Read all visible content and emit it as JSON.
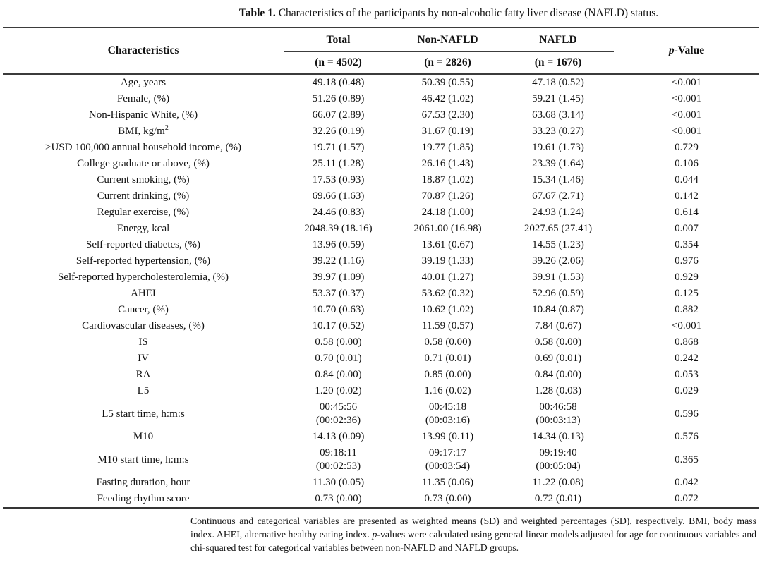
{
  "title": {
    "label": "Table 1.",
    "text": " Characteristics of the participants by non-alcoholic fatty liver disease (NAFLD) status."
  },
  "table": {
    "header": {
      "characteristics": "Characteristics",
      "groups": [
        {
          "name": "Total",
          "n": "(n = 4502)"
        },
        {
          "name": "Non-NAFLD",
          "n": "(n = 2826)"
        },
        {
          "name": "NAFLD",
          "n": "(n = 1676)"
        }
      ],
      "p_italic": "p",
      "p_rest": "-Value"
    },
    "rows": [
      {
        "label": "Age, years",
        "total": "49.18 (0.48)",
        "non_nafld": "50.39 (0.55)",
        "nafld": "47.18 (0.52)",
        "p": "<0.001"
      },
      {
        "label": "Female, (%)",
        "total": "51.26 (0.89)",
        "non_nafld": "46.42 (1.02)",
        "nafld": "59.21 (1.45)",
        "p": "<0.001"
      },
      {
        "label": "Non-Hispanic White, (%)",
        "total": "66.07 (2.89)",
        "non_nafld": "67.53 (2.30)",
        "nafld": "63.68 (3.14)",
        "p": "<0.001"
      },
      {
        "label": "BMI, kg/m",
        "label_sup": "2",
        "total": "32.26 (0.19)",
        "non_nafld": "31.67 (0.19)",
        "nafld": "33.23 (0.27)",
        "p": "<0.001"
      },
      {
        "label": ">USD 100,000 annual household income, (%)",
        "total": "19.71 (1.57)",
        "non_nafld": "19.77 (1.85)",
        "nafld": "19.61 (1.73)",
        "p": "0.729"
      },
      {
        "label": "College graduate or above, (%)",
        "total": "25.11 (1.28)",
        "non_nafld": "26.16 (1.43)",
        "nafld": "23.39 (1.64)",
        "p": "0.106"
      },
      {
        "label": "Current smoking, (%)",
        "total": "17.53 (0.93)",
        "non_nafld": "18.87 (1.02)",
        "nafld": "15.34 (1.46)",
        "p": "0.044"
      },
      {
        "label": "Current drinking, (%)",
        "total": "69.66 (1.63)",
        "non_nafld": "70.87 (1.26)",
        "nafld": "67.67 (2.71)",
        "p": "0.142"
      },
      {
        "label": "Regular exercise, (%)",
        "total": "24.46 (0.83)",
        "non_nafld": "24.18 (1.00)",
        "nafld": "24.93 (1.24)",
        "p": "0.614"
      },
      {
        "label": "Energy, kcal",
        "total": "2048.39 (18.16)",
        "non_nafld": "2061.00 (16.98)",
        "nafld": "2027.65 (27.41)",
        "p": "0.007"
      },
      {
        "label": "Self-reported diabetes, (%)",
        "total": "13.96 (0.59)",
        "non_nafld": "13.61 (0.67)",
        "nafld": "14.55 (1.23)",
        "p": "0.354"
      },
      {
        "label": "Self-reported hypertension, (%)",
        "total": "39.22 (1.16)",
        "non_nafld": "39.19 (1.33)",
        "nafld": "39.26 (2.06)",
        "p": "0.976"
      },
      {
        "label": "Self-reported hypercholesterolemia, (%)",
        "total": "39.97 (1.09)",
        "non_nafld": "40.01 (1.27)",
        "nafld": "39.91 (1.53)",
        "p": "0.929"
      },
      {
        "label": "AHEI",
        "total": "53.37 (0.37)",
        "non_nafld": "53.62 (0.32)",
        "nafld": "52.96 (0.59)",
        "p": "0.125"
      },
      {
        "label": "Cancer, (%)",
        "total": "10.70 (0.63)",
        "non_nafld": "10.62 (1.02)",
        "nafld": "10.84 (0.87)",
        "p": "0.882"
      },
      {
        "label": "Cardiovascular diseases, (%)",
        "total": "10.17 (0.52)",
        "non_nafld": "11.59 (0.57)",
        "nafld": "7.84 (0.67)",
        "p": "<0.001"
      },
      {
        "label": "IS",
        "total": "0.58 (0.00)",
        "non_nafld": "0.58 (0.00)",
        "nafld": "0.58 (0.00)",
        "p": "0.868"
      },
      {
        "label": "IV",
        "total": "0.70 (0.01)",
        "non_nafld": "0.71 (0.01)",
        "nafld": "0.69 (0.01)",
        "p": "0.242"
      },
      {
        "label": "RA",
        "total": "0.84 (0.00)",
        "non_nafld": "0.85 (0.00)",
        "nafld": "0.84 (0.00)",
        "p": "0.053"
      },
      {
        "label": "L5",
        "total": "1.20 (0.02)",
        "non_nafld": "1.16 (0.02)",
        "nafld": "1.28 (0.03)",
        "p": "0.029"
      },
      {
        "label": "L5 start time, h:m:s",
        "total": [
          "00:45:56",
          "(00:02:36)"
        ],
        "non_nafld": [
          "00:45:18",
          "(00:03:16)"
        ],
        "nafld": [
          "00:46:58",
          "(00:03:13)"
        ],
        "p": "0.596"
      },
      {
        "label": "M10",
        "total": "14.13 (0.09)",
        "non_nafld": "13.99 (0.11)",
        "nafld": "14.34 (0.13)",
        "p": "0.576"
      },
      {
        "label": "M10 start time, h:m:s",
        "total": [
          "09:18:11",
          "(00:02:53)"
        ],
        "non_nafld": [
          "09:17:17",
          "(00:03:54)"
        ],
        "nafld": [
          "09:19:40",
          "(00:05:04)"
        ],
        "p": "0.365"
      },
      {
        "label": "Fasting duration, hour",
        "total": "11.30 (0.05)",
        "non_nafld": "11.35 (0.06)",
        "nafld": "11.22 (0.08)",
        "p": "0.042"
      },
      {
        "label": "Feeding rhythm score",
        "total": "0.73 (0.00)",
        "non_nafld": "0.73 (0.00)",
        "nafld": "0.72 (0.01)",
        "p": "0.072"
      }
    ]
  },
  "footnote": {
    "segments": [
      {
        "text": "Continuous and categorical variables are presented as weighted means (SD) and weighted percentages (SD), respectively. BMI, body mass index. AHEI, alternative healthy eating index. "
      },
      {
        "text": "p",
        "italic": true
      },
      {
        "text": "-values were calculated using general linear models adjusted for age for continuous variables and chi-squared test for categorical variables between non-NAFLD and NAFLD groups."
      }
    ]
  },
  "colors": {
    "rule": "#3b3b3b",
    "text": "#121212",
    "background": "#ffffff"
  }
}
